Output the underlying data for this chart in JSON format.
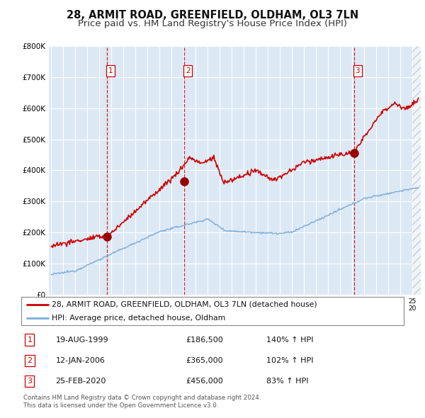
{
  "title": "28, ARMIT ROAD, GREENFIELD, OLDHAM, OL3 7LN",
  "subtitle": "Price paid vs. HM Land Registry's House Price Index (HPI)",
  "ylim": [
    0,
    800000
  ],
  "yticks": [
    0,
    100000,
    200000,
    300000,
    400000,
    500000,
    600000,
    700000,
    800000
  ],
  "ytick_labels": [
    "£0",
    "£100K",
    "£200K",
    "£300K",
    "£400K",
    "£500K",
    "£600K",
    "£700K",
    "£800K"
  ],
  "background_color": "#ffffff",
  "plot_bg_color": "#dce9f5",
  "grid_color": "#ffffff",
  "red_line_color": "#cc0000",
  "blue_line_color": "#7aaddb",
  "sale_marker_color": "#990000",
  "vline_color": "#cc0000",
  "transactions": [
    {
      "label": "1",
      "date_num": 1999.64,
      "price": 186500,
      "pct": "140% ↑ HPI",
      "date_str": "19-AUG-1999"
    },
    {
      "label": "2",
      "date_num": 2006.04,
      "price": 365000,
      "pct": "102% ↑ HPI",
      "date_str": "12-JAN-2006"
    },
    {
      "label": "3",
      "date_num": 2020.15,
      "price": 456000,
      "pct": "83% ↑ HPI",
      "date_str": "25-FEB-2020"
    }
  ],
  "legend_line1": "28, ARMIT ROAD, GREENFIELD, OLDHAM, OL3 7LN (detached house)",
  "legend_line2": "HPI: Average price, detached house, Oldham",
  "footer1": "Contains HM Land Registry data © Crown copyright and database right 2024.",
  "footer2": "This data is licensed under the Open Government Licence v3.0.",
  "title_fontsize": 10.5,
  "subtitle_fontsize": 9.5,
  "xstart": 1995,
  "xend": 2025
}
